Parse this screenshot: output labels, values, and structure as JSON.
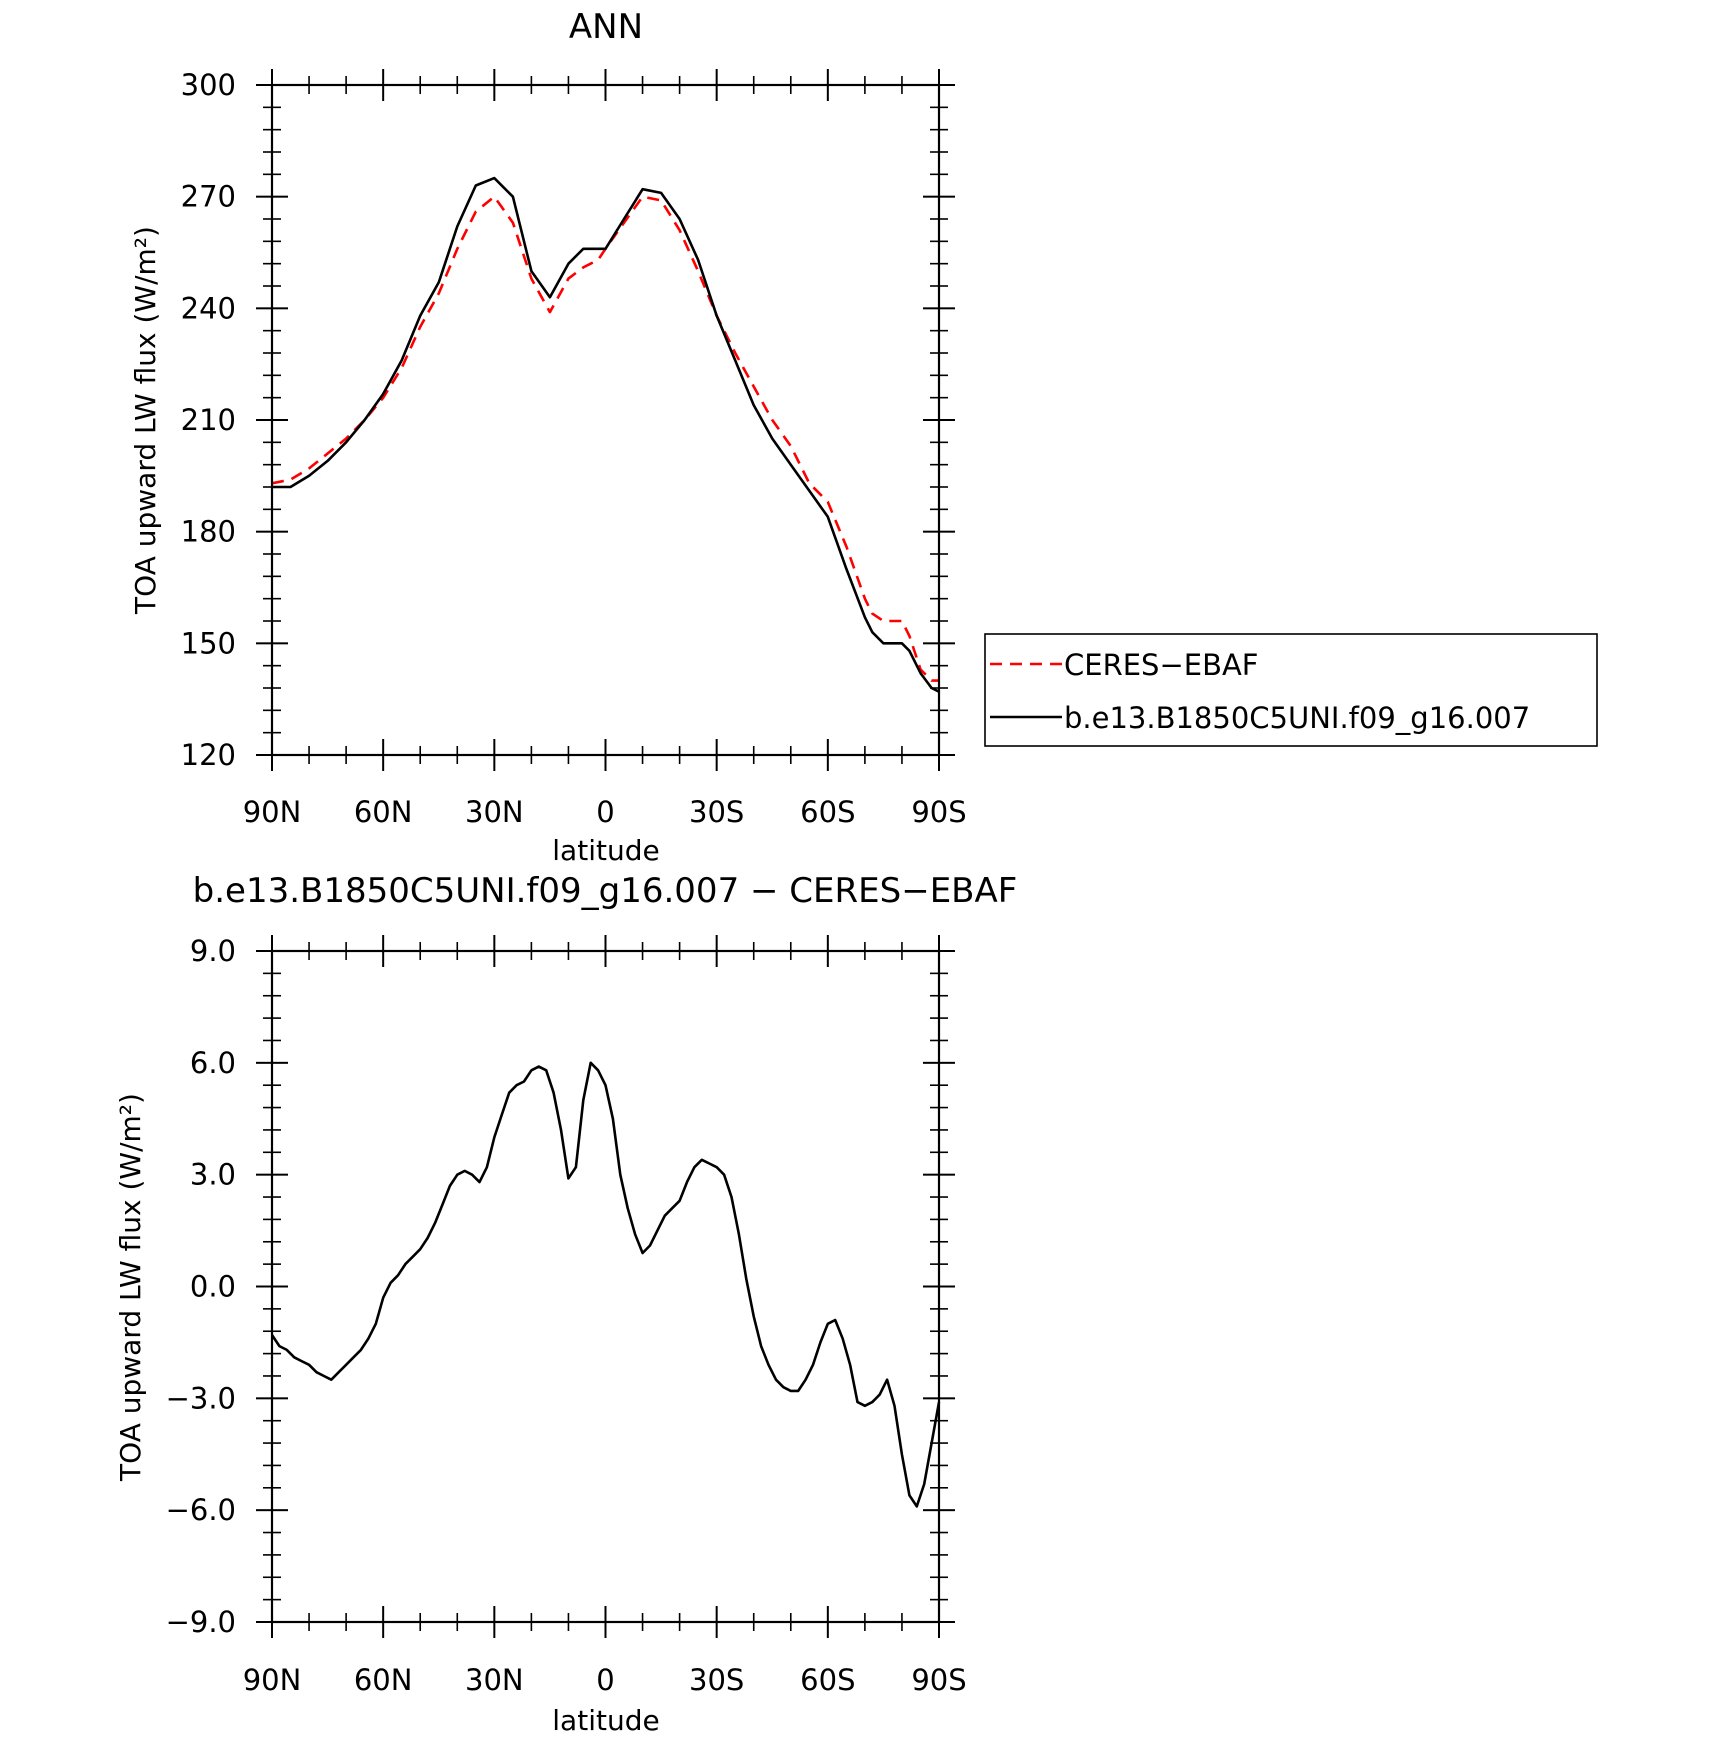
{
  "chart_data": [
    {
      "type": "line",
      "title": "ANN",
      "xlabel": "latitude",
      "ylabel": "TOA upward LW flux (W/m²)",
      "x_tick_values": [
        90,
        60,
        30,
        0,
        -30,
        -60,
        -90
      ],
      "x_tick_labels": [
        "90N",
        "60N",
        "30N",
        "0",
        "30S",
        "60S",
        "90S"
      ],
      "xlim": [
        90,
        -90
      ],
      "ylim": [
        120,
        300
      ],
      "y_tick_values": [
        120,
        150,
        180,
        210,
        240,
        270,
        300
      ],
      "y_tick_labels": [
        "120",
        "150",
        "180",
        "210",
        "240",
        "270",
        "300"
      ],
      "grid": false,
      "legend": {
        "placement": "right",
        "entries": [
          "CERES−EBAF",
          "b.e13.B1850C5UNI.f09_g16.007"
        ]
      },
      "colors": {
        "obs": "#ff0000",
        "model": "#000000"
      },
      "series": [
        {
          "name": "CERES−EBAF",
          "style": "dashed",
          "color": "#ff0000",
          "x": [
            90,
            85,
            80,
            75,
            70,
            65,
            60,
            55,
            50,
            45,
            40,
            35,
            30,
            25,
            20,
            15,
            10,
            6,
            2,
            0,
            -5,
            -10,
            -15,
            -20,
            -25,
            -30,
            -35,
            -40,
            -45,
            -50,
            -55,
            -60,
            -65,
            -70,
            -72,
            -75,
            -80,
            -82,
            -85,
            -88,
            -90
          ],
          "y": [
            193,
            194,
            197,
            201,
            205,
            210,
            216,
            224,
            235,
            244,
            256,
            266,
            270,
            263,
            248,
            239,
            248,
            251,
            253,
            256,
            263,
            270,
            269,
            261,
            250,
            238,
            228,
            219,
            210,
            203,
            193,
            188,
            176,
            162,
            158,
            156,
            156,
            152,
            143,
            140,
            140
          ]
        },
        {
          "name": "b.e13.B1850C5UNI.f09_g16.007",
          "style": "solid",
          "color": "#000000",
          "x": [
            90,
            85,
            80,
            75,
            70,
            65,
            60,
            55,
            50,
            45,
            40,
            35,
            30,
            25,
            20,
            15,
            10,
            6,
            2,
            0,
            -5,
            -10,
            -15,
            -20,
            -25,
            -30,
            -35,
            -40,
            -45,
            -50,
            -55,
            -60,
            -65,
            -70,
            -72,
            -75,
            -80,
            -82,
            -85,
            -88,
            -90
          ],
          "y": [
            192,
            192,
            195,
            199,
            204,
            210,
            217,
            226,
            238,
            247,
            262,
            273,
            275,
            270,
            250,
            243,
            252,
            256,
            256,
            256,
            264,
            272,
            271,
            264,
            253,
            238,
            226,
            214,
            205,
            198,
            191,
            184,
            170,
            157,
            153,
            150,
            150,
            148,
            142,
            138,
            137
          ]
        }
      ]
    },
    {
      "type": "line",
      "title": "b.e13.B1850C5UNI.f09_g16.007 − CERES−EBAF",
      "xlabel": "latitude",
      "ylabel": "TOA upward LW flux (W/m²)",
      "x_tick_values": [
        90,
        60,
        30,
        0,
        -30,
        -60,
        -90
      ],
      "x_tick_labels": [
        "90N",
        "60N",
        "30N",
        "0",
        "30S",
        "60S",
        "90S"
      ],
      "xlim": [
        90,
        -90
      ],
      "ylim": [
        -9,
        9
      ],
      "y_tick_values": [
        -9,
        -6,
        -3,
        0,
        3,
        6,
        9
      ],
      "y_tick_labels": [
        "−9.0",
        "−6.0",
        "−3.0",
        "0.0",
        "3.0",
        "6.0",
        "9.0"
      ],
      "grid": false,
      "series": [
        {
          "style": "solid",
          "color": "#000000",
          "x": [
            90,
            88,
            86,
            84,
            82,
            80,
            78,
            76,
            74,
            72,
            70,
            68,
            66,
            64,
            62,
            60,
            58,
            56,
            54,
            52,
            50,
            48,
            46,
            44,
            42,
            40,
            38,
            36,
            34,
            32,
            30,
            28,
            26,
            24,
            22,
            20,
            18,
            16,
            14,
            12,
            10,
            8,
            6,
            4,
            2,
            0,
            -2,
            -4,
            -6,
            -8,
            -10,
            -12,
            -14,
            -16,
            -18,
            -20,
            -22,
            -24,
            -26,
            -28,
            -30,
            -32,
            -34,
            -36,
            -38,
            -40,
            -42,
            -44,
            -46,
            -48,
            -50,
            -52,
            -54,
            -56,
            -58,
            -60,
            -62,
            -64,
            -66,
            -68,
            -70,
            -72,
            -74,
            -76,
            -78,
            -80,
            -82,
            -84,
            -86,
            -88,
            -90
          ],
          "y": [
            -1.3,
            -1.6,
            -1.7,
            -1.9,
            -2.0,
            -2.1,
            -2.3,
            -2.4,
            -2.5,
            -2.3,
            -2.1,
            -1.9,
            -1.7,
            -1.4,
            -1.0,
            -0.3,
            0.1,
            0.3,
            0.6,
            0.8,
            1.0,
            1.3,
            1.7,
            2.2,
            2.7,
            3.0,
            3.1,
            3.0,
            2.8,
            3.2,
            4.0,
            4.6,
            5.2,
            5.4,
            5.5,
            5.8,
            5.9,
            5.8,
            5.2,
            4.2,
            2.9,
            3.2,
            5.0,
            6.0,
            5.8,
            5.4,
            4.5,
            3.0,
            2.1,
            1.4,
            0.9,
            1.1,
            1.5,
            1.9,
            2.1,
            2.3,
            2.8,
            3.2,
            3.4,
            3.3,
            3.2,
            3.0,
            2.4,
            1.4,
            0.2,
            -0.8,
            -1.6,
            -2.1,
            -2.5,
            -2.7,
            -2.8,
            -2.8,
            -2.5,
            -2.1,
            -1.5,
            -1.0,
            -0.9,
            -1.4,
            -2.1,
            -3.1,
            -3.2,
            -3.1,
            -2.9,
            -2.5,
            -3.2,
            -4.5,
            -5.6,
            -5.9,
            -5.3,
            -4.2,
            -3.1
          ]
        }
      ]
    }
  ]
}
